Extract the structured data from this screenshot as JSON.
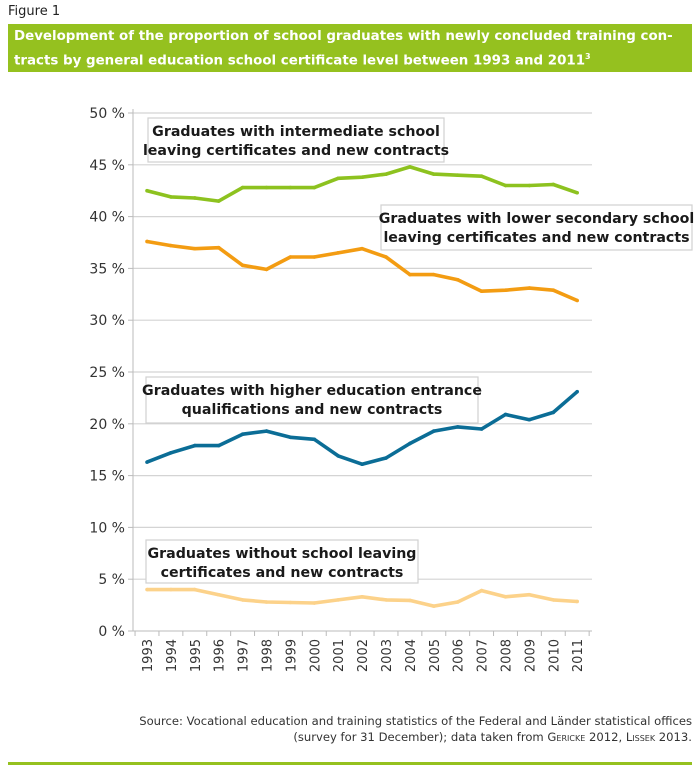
{
  "figure_label": "Figure 1",
  "title": "Development of the proportion of school graduates with newly concluded training con-tracts by general education school certificate level between 1993 and 2011",
  "title_line1": "Development of the proportion of school graduates with newly concluded training con-",
  "title_line2": "tracts by general education school certificate level between 1993 and 2011",
  "title_footnote": "3",
  "source_line1": "Source: Vocational education and training statistics of the Federal and Länder statistical offices",
  "source_line2_a": "(survey for 31 December); data taken from ",
  "source_author1": "Gericke",
  "source_year1": " 2012, ",
  "source_author2": "Lissek",
  "source_year2": " 2013.",
  "colors": {
    "brand_green": "#95c11f"
  },
  "chart_data": {
    "type": "line",
    "x": [
      1993,
      1994,
      1995,
      1996,
      1997,
      1998,
      1999,
      2000,
      2001,
      2002,
      2003,
      2004,
      2005,
      2006,
      2007,
      2008,
      2009,
      2010,
      2011
    ],
    "x_tick_labels": [
      "1993",
      "1994",
      "1995",
      "1996",
      "1997",
      "1998",
      "1999",
      "2000",
      "2001",
      "2002",
      "2003",
      "2004",
      "2005",
      "2006",
      "2007",
      "2008",
      "2009",
      "2010",
      "2011"
    ],
    "ylim": [
      0,
      50
    ],
    "y_ticks": [
      0,
      5,
      10,
      15,
      20,
      25,
      30,
      35,
      40,
      45,
      50
    ],
    "y_tick_labels": [
      "0 %",
      "5 %",
      "10 %",
      "15 %",
      "20 %",
      "25 %",
      "30 %",
      "35 %",
      "40 %",
      "45 %",
      "50 %"
    ],
    "grid": "horizontal",
    "series": [
      {
        "name": "Graduates with intermediate school leaving certificates and new contracts",
        "label_lines": [
          "Graduates with intermediate school",
          "leaving certificates and new contracts"
        ],
        "color": "#8dc21f",
        "values": [
          42.5,
          41.9,
          41.8,
          41.5,
          42.8,
          42.8,
          42.8,
          42.8,
          43.7,
          43.8,
          44.1,
          44.8,
          44.1,
          44.0,
          43.9,
          43.0,
          43.0,
          43.1,
          42.3
        ]
      },
      {
        "name": "Graduates with lower secondary school leaving certificates and new contracts",
        "label_lines": [
          "Graduates with lower secondary school",
          "leaving certificates and new contracts"
        ],
        "color": "#f39c12",
        "values": [
          37.6,
          37.2,
          36.9,
          37.0,
          35.3,
          34.9,
          36.1,
          36.1,
          36.5,
          36.9,
          36.1,
          34.4,
          34.4,
          33.9,
          32.8,
          32.9,
          33.1,
          32.9,
          31.9
        ]
      },
      {
        "name": "Graduates with higher education entrance qualifications and new contracts",
        "label_lines": [
          "Graduates with higher education entrance",
          "qualifications and new contracts"
        ],
        "color": "#0b6d96",
        "values": [
          16.3,
          17.2,
          17.9,
          17.9,
          19.0,
          19.3,
          18.7,
          18.5,
          16.9,
          16.1,
          16.7,
          18.1,
          19.3,
          19.7,
          19.5,
          20.9,
          20.4,
          21.1,
          23.1
        ]
      },
      {
        "name": "Graduates without school leaving certificates and new contracts",
        "label_lines": [
          "Graduates without school leaving",
          "certificates and new contracts"
        ],
        "color": "#fcd28a",
        "values": [
          4.0,
          4.0,
          4.0,
          3.5,
          3.0,
          2.8,
          2.75,
          2.7,
          3.0,
          3.3,
          3.0,
          2.95,
          2.4,
          2.8,
          3.9,
          3.3,
          3.5,
          3.0,
          2.85
        ]
      }
    ]
  }
}
